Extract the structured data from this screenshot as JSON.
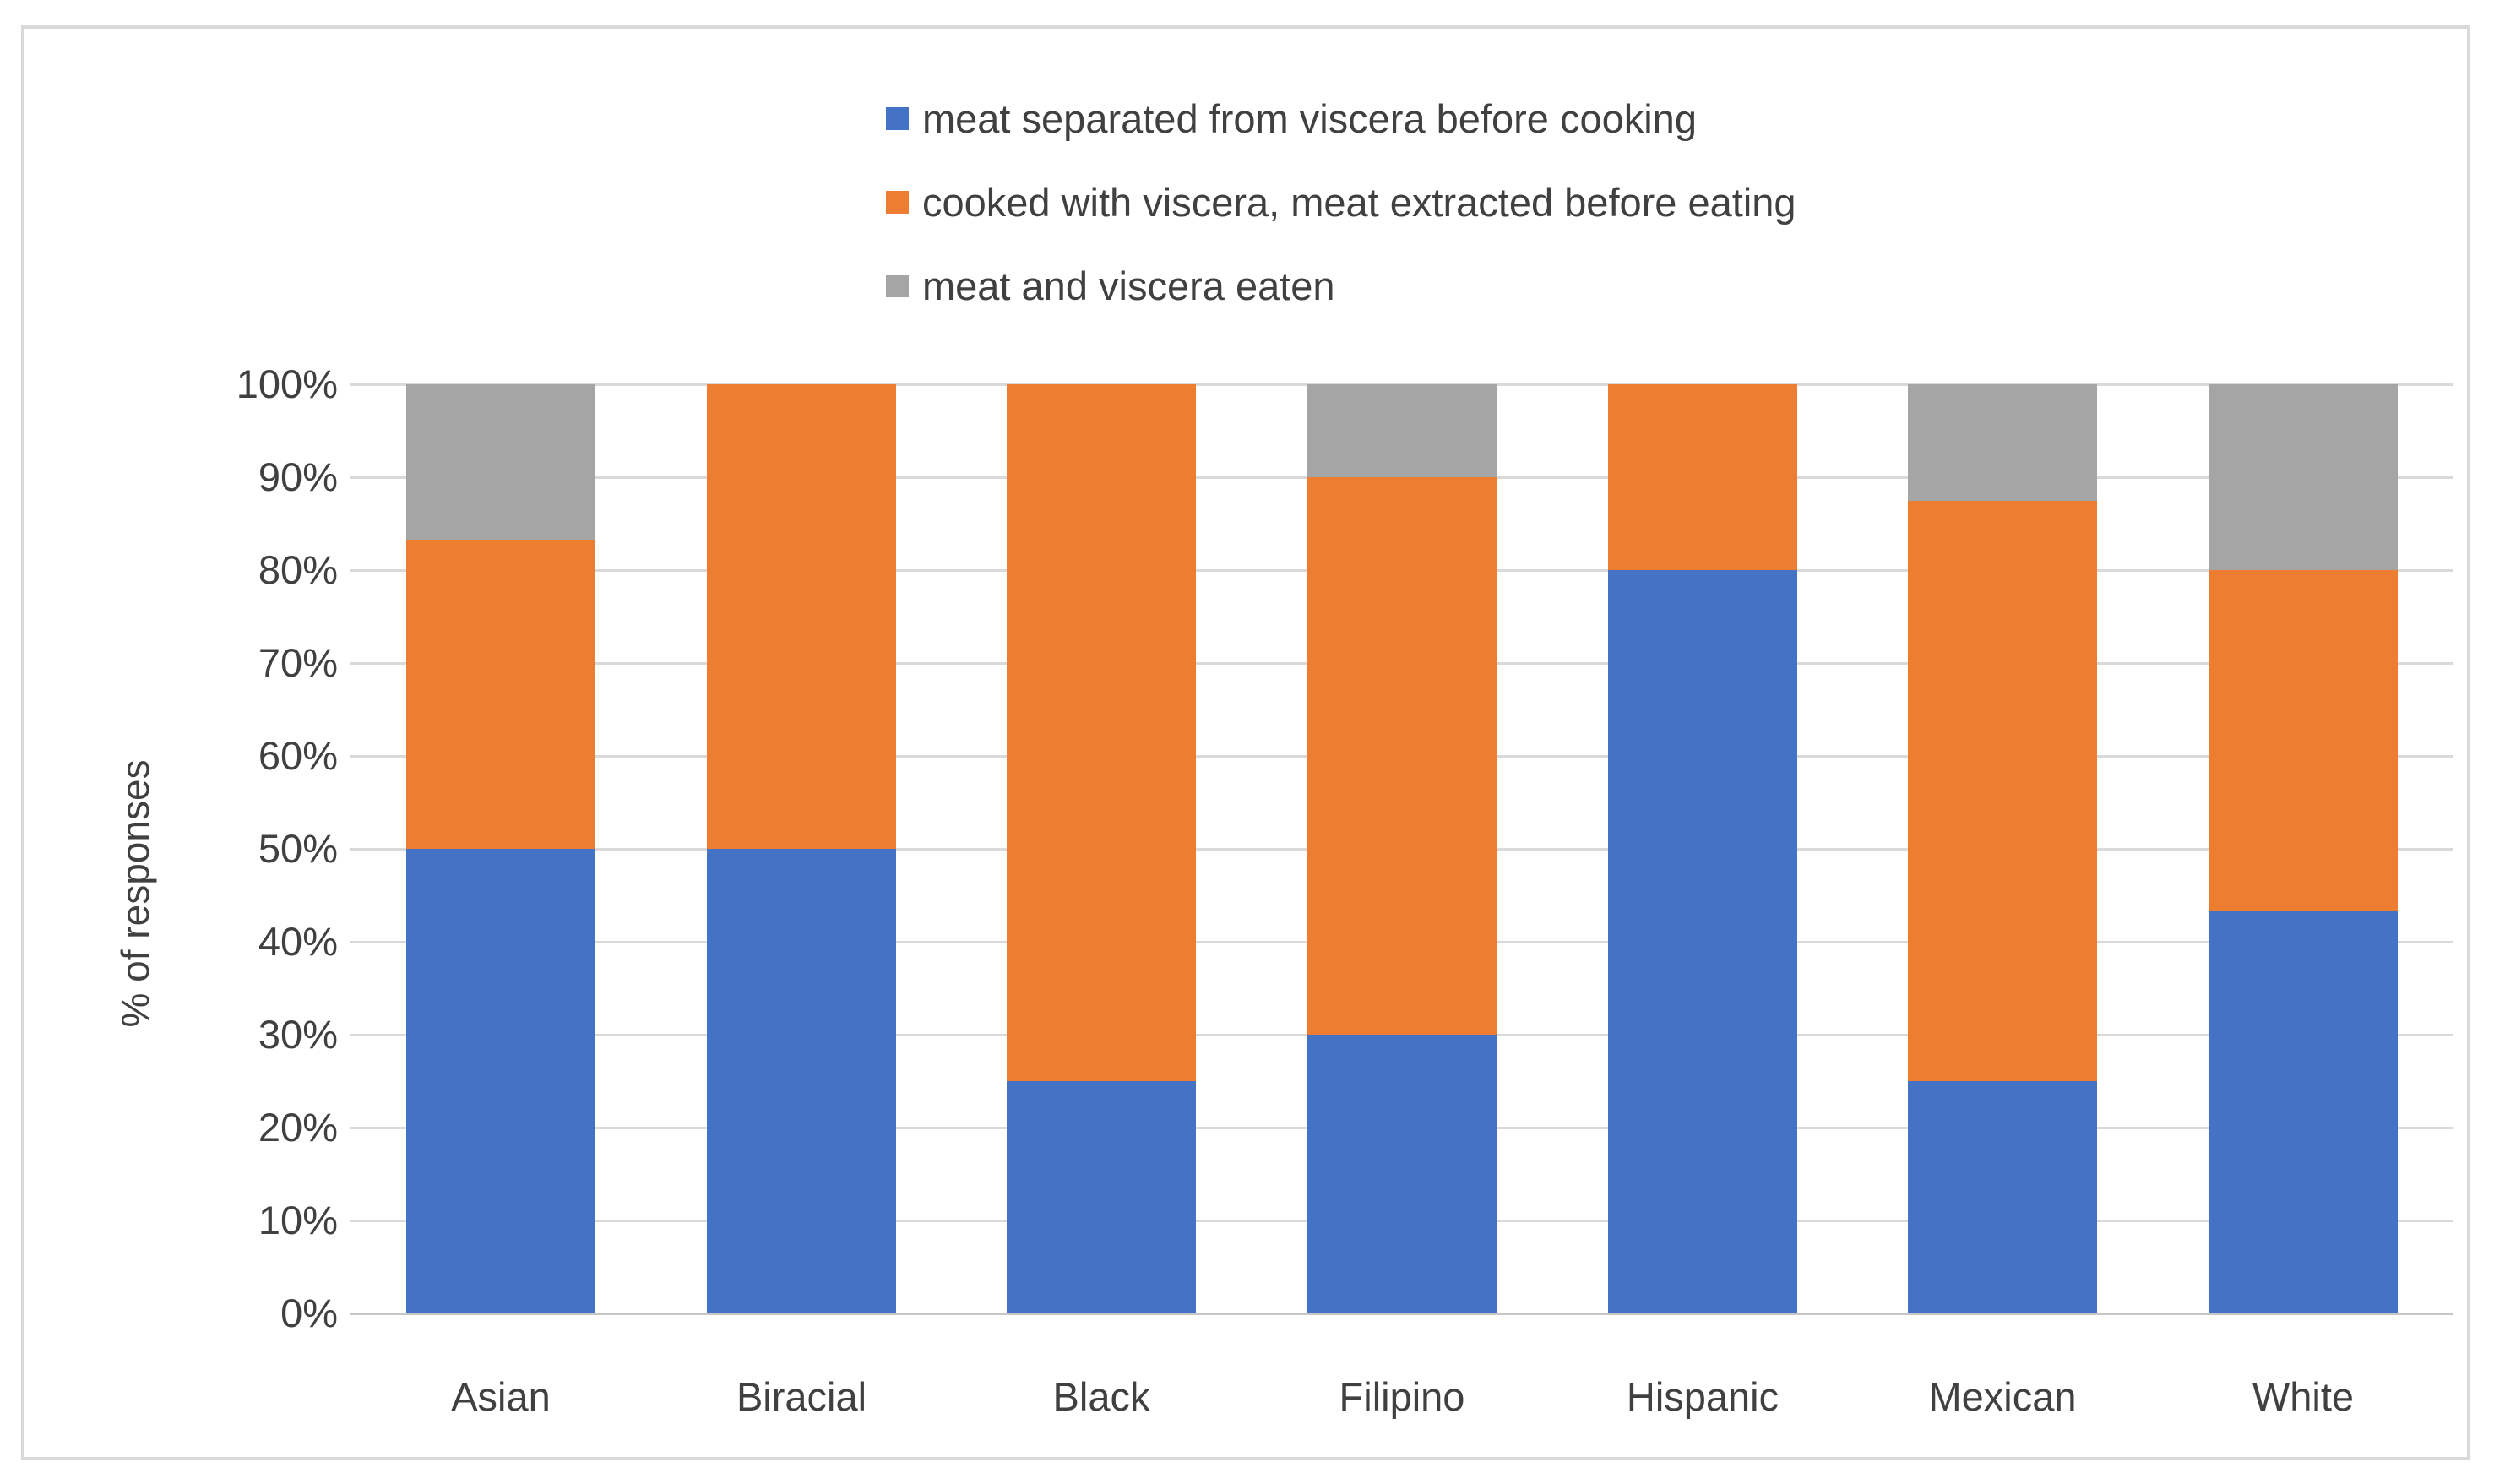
{
  "chart_data": {
    "type": "bar",
    "stacked": true,
    "percent_stacked": true,
    "title": "",
    "xlabel": "",
    "ylabel": "% of responses",
    "ylim": [
      0,
      100
    ],
    "ytick_step": 10,
    "ytick_suffix": "%",
    "grid": true,
    "legend_position": "top",
    "categories": [
      "Asian",
      "Biracial",
      "Black",
      "Filipino",
      "Hispanic",
      "Mexican",
      "White"
    ],
    "series": [
      {
        "name": "meat separated from viscera before cooking",
        "color": "#4472C4",
        "values": [
          50,
          50,
          25,
          30,
          80,
          25,
          43.3
        ]
      },
      {
        "name": "cooked with viscera, meat extracted before eating",
        "color": "#ED7D31",
        "values": [
          33.3,
          50,
          75,
          60,
          20,
          62.5,
          36.7
        ]
      },
      {
        "name": "meat and viscera eaten",
        "color": "#A5A5A5",
        "values": [
          16.7,
          0,
          0,
          10,
          0,
          12.5,
          20
        ]
      }
    ],
    "colors": {
      "gridline": "#D9D9D9",
      "axis_line": "#C6C6C6",
      "text": "#404040",
      "frame_border": "#D9D9D9",
      "background": "#FFFFFF"
    }
  }
}
